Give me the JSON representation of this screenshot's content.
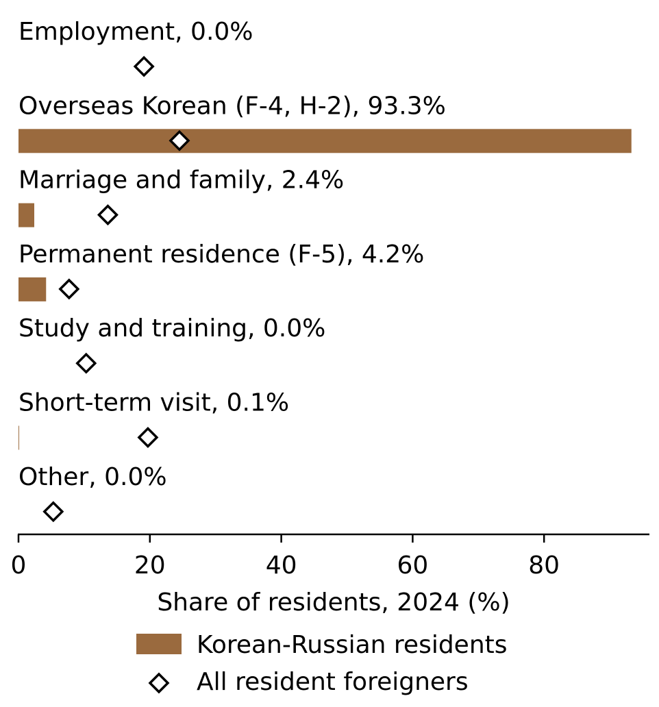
{
  "chart_data": {
    "type": "bar",
    "orientation": "horizontal",
    "categories": [
      "Employment",
      "Overseas Korean (F-4, H-2)",
      "Marriage and family",
      "Permanent residence (F-5)",
      "Study and training",
      "Short-term visit",
      "Other"
    ],
    "category_labels": [
      "Employment, 0.0%",
      "Overseas Korean (F-4, H-2), 93.3%",
      "Marriage and family, 2.4%",
      "Permanent residence (F-5), 4.2%",
      "Study and training, 0.0%",
      "Short-term visit, 0.1%",
      "Other, 0.0%"
    ],
    "series": [
      {
        "name": "Korean-Russian residents",
        "kind": "bar",
        "color": "#9a6a3e",
        "values": [
          0.0,
          93.3,
          2.4,
          4.2,
          0.0,
          0.1,
          0.0
        ]
      },
      {
        "name": "All resident foreigners",
        "kind": "marker",
        "marker": "diamond-open",
        "color": "#000000",
        "values": [
          19.1,
          24.5,
          13.6,
          7.7,
          10.3,
          19.7,
          5.3
        ]
      }
    ],
    "xlabel": "Share of residents, 2024 (%)",
    "xlim": [
      0,
      96
    ],
    "xticks": [
      0,
      20,
      40,
      60,
      80
    ],
    "xtick_labels": [
      "0",
      "20",
      "40",
      "60",
      "80"
    ],
    "grid": false,
    "legend_position": "bottom-center"
  }
}
